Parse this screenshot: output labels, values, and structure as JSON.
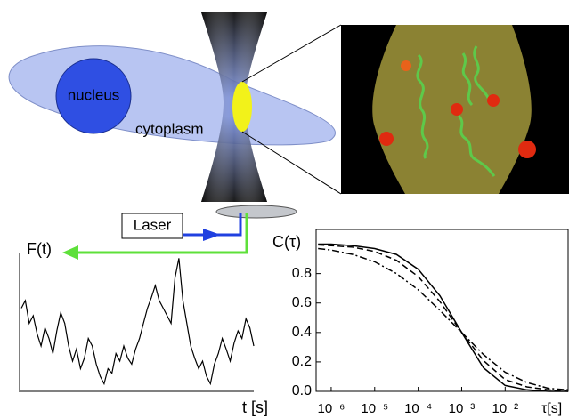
{
  "diagram": {
    "nucleus": "nucleus",
    "cytoplasm": "cytoplasm",
    "laser": "Laser"
  },
  "chart_data": [
    {
      "type": "line",
      "y_label": "F(t)",
      "x_label": "t [s]",
      "ylim": [
        0,
        1
      ],
      "color": "#000000",
      "values": [
        0.55,
        0.6,
        0.45,
        0.5,
        0.38,
        0.3,
        0.42,
        0.35,
        0.25,
        0.4,
        0.52,
        0.45,
        0.3,
        0.2,
        0.28,
        0.15,
        0.22,
        0.35,
        0.3,
        0.18,
        0.1,
        0.05,
        0.15,
        0.12,
        0.25,
        0.2,
        0.3,
        0.22,
        0.18,
        0.28,
        0.35,
        0.45,
        0.55,
        0.62,
        0.7,
        0.6,
        0.55,
        0.5,
        0.45,
        0.75,
        0.88,
        0.6,
        0.45,
        0.3,
        0.22,
        0.15,
        0.2,
        0.1,
        0.05,
        0.18,
        0.25,
        0.35,
        0.28,
        0.2,
        0.32,
        0.4,
        0.35,
        0.48,
        0.42,
        0.3
      ]
    },
    {
      "type": "line",
      "y_label": "C(τ)",
      "x_label": "τ[s]",
      "log_x": true,
      "xlim": [
        4.5e-07,
        0.28
      ],
      "ylim": [
        0,
        1.1
      ],
      "xticks": [
        {
          "value": 1e-06,
          "label": "10⁻⁶"
        },
        {
          "value": 1e-05,
          "label": "10⁻⁵"
        },
        {
          "value": 0.0001,
          "label": "10⁻⁴"
        },
        {
          "value": 0.001,
          "label": "10⁻³"
        },
        {
          "value": 0.01,
          "label": "10⁻²"
        }
      ],
      "yticks": [
        {
          "value": 0,
          "label": "0.0"
        },
        0.2,
        0.4,
        0.6,
        0.8
      ],
      "x": [
        5e-07,
        1e-06,
        3.16e-06,
        1e-05,
        3.16e-05,
        0.0001,
        0.000316,
        0.001,
        0.00316,
        0.01,
        0.0316,
        0.1,
        0.28
      ],
      "series": [
        {
          "color": "#000000",
          "dash": "solid",
          "values": [
            1.0,
            1.0,
            0.99,
            0.97,
            0.93,
            0.83,
            0.65,
            0.4,
            0.16,
            0.04,
            0.01,
            0.0,
            0.0
          ]
        },
        {
          "color": "#000000",
          "dash": "dash",
          "values": [
            0.995,
            0.99,
            0.98,
            0.95,
            0.89,
            0.78,
            0.61,
            0.4,
            0.21,
            0.08,
            0.03,
            0.01,
            0.0
          ]
        },
        {
          "color": "#000000",
          "dash": "dashdot",
          "values": [
            0.97,
            0.96,
            0.93,
            0.88,
            0.8,
            0.69,
            0.55,
            0.4,
            0.25,
            0.13,
            0.06,
            0.02,
            0.01
          ]
        }
      ]
    }
  ]
}
